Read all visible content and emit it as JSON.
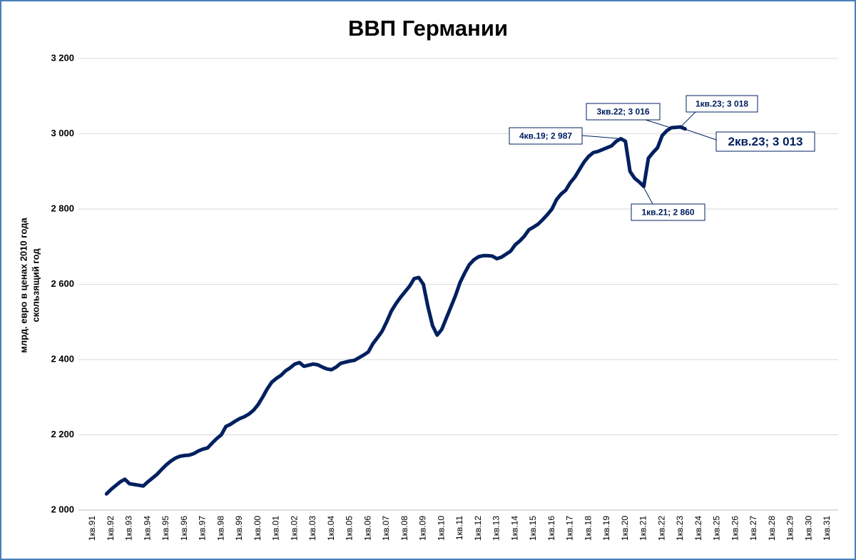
{
  "chart_data": {
    "type": "line",
    "title": "ВВП Германии",
    "y_label": [
      "млрд. евро в ценах 2010 года",
      "скользящий год"
    ],
    "categories": [
      "1кв.91",
      null,
      null,
      null,
      "1кв.92",
      null,
      null,
      null,
      "1кв.93",
      null,
      null,
      null,
      "1кв.94",
      null,
      null,
      null,
      "1кв.95",
      null,
      null,
      null,
      "1кв.96",
      null,
      null,
      null,
      "1кв.97",
      null,
      null,
      null,
      "1кв.98",
      null,
      null,
      null,
      "1кв.99",
      null,
      null,
      null,
      "1кв.00",
      null,
      null,
      null,
      "1кв.01",
      null,
      null,
      null,
      "1кв.02",
      null,
      null,
      null,
      "1кв.03",
      null,
      null,
      null,
      "1кв.04",
      null,
      null,
      null,
      "1кв.05",
      null,
      null,
      null,
      "1кв.06",
      null,
      null,
      null,
      "1кв.07",
      null,
      null,
      null,
      "1кв.08",
      null,
      null,
      null,
      "1кв.09",
      null,
      null,
      null,
      "1кв.10",
      null,
      null,
      null,
      "1кв.11",
      null,
      null,
      null,
      "1кв.12",
      null,
      null,
      null,
      "1кв.13",
      null,
      null,
      null,
      "1кв.14",
      null,
      null,
      null,
      "1кв.15",
      null,
      null,
      null,
      "1кв.16",
      null,
      null,
      null,
      "1кв.17",
      null,
      null,
      null,
      "1кв.18",
      null,
      null,
      null,
      "1кв.19",
      null,
      null,
      null,
      "1кв.20",
      null,
      null,
      null,
      "1кв.21",
      null,
      null,
      null,
      "1кв.22",
      null,
      null,
      null,
      "1кв.23",
      null,
      null,
      null,
      "1кв.24",
      null,
      null,
      null,
      "1кв.25",
      null,
      null,
      null,
      "1кв.26",
      null,
      null,
      null,
      "1кв.27",
      null,
      null,
      null,
      "1кв.28",
      null,
      null,
      null,
      "1кв.29",
      null,
      null,
      null,
      "1кв.30",
      null,
      null,
      null,
      "1кв.31"
    ],
    "series": [
      {
        "name": "ВВП",
        "color": "#002060",
        "values": [
          null,
          null,
          null,
          2043,
          2055,
          2065,
          2075,
          2082,
          2070,
          2068,
          2066,
          2064,
          2075,
          2085,
          2095,
          2108,
          2120,
          2130,
          2138,
          2143,
          2145,
          2146,
          2150,
          2157,
          2162,
          2165,
          2178,
          2190,
          2200,
          2222,
          2228,
          2236,
          2243,
          2248,
          2255,
          2265,
          2280,
          2300,
          2322,
          2340,
          2350,
          2358,
          2370,
          2378,
          2388,
          2392,
          2382,
          2385,
          2388,
          2386,
          2380,
          2375,
          2373,
          2380,
          2390,
          2393,
          2396,
          2398,
          2405,
          2412,
          2420,
          2442,
          2458,
          2475,
          2500,
          2528,
          2548,
          2565,
          2580,
          2595,
          2615,
          2618,
          2600,
          2540,
          2490,
          2465,
          2480,
          2510,
          2540,
          2570,
          2605,
          2630,
          2652,
          2665,
          2673,
          2676,
          2676,
          2675,
          2668,
          2672,
          2680,
          2688,
          2705,
          2715,
          2728,
          2745,
          2752,
          2760,
          2772,
          2785,
          2800,
          2825,
          2840,
          2850,
          2870,
          2885,
          2905,
          2925,
          2940,
          2950,
          2953,
          2958,
          2963,
          2968,
          2980,
          2987,
          2980,
          2900,
          2882,
          2872,
          2860,
          2935,
          2950,
          2963,
          2995,
          3008,
          3016,
          3017,
          3018,
          3013,
          null,
          null,
          null,
          null,
          null,
          null,
          null,
          null,
          null,
          null,
          null,
          null,
          null,
          null,
          null,
          null,
          null,
          null,
          null,
          null,
          null,
          null,
          null,
          null,
          null,
          null,
          null,
          null,
          null,
          null,
          null
        ]
      }
    ],
    "ylim": [
      2000,
      3200
    ],
    "yticks": [
      {
        "value": 2000,
        "label": "2 000"
      },
      {
        "value": 2200,
        "label": "2 200"
      },
      {
        "value": 2400,
        "label": "2 400"
      },
      {
        "value": 2600,
        "label": "2 600"
      },
      {
        "value": 2800,
        "label": "2 800"
      },
      {
        "value": 3000,
        "label": "3 000"
      },
      {
        "value": 3200,
        "label": "3 200"
      }
    ],
    "grid": true,
    "annotations": [
      "4кв.19; 2 987",
      "3кв.22; 3 016",
      "1кв.23; 3 018",
      "2кв.23; 3 013",
      "1кв.21; 2 860"
    ]
  }
}
